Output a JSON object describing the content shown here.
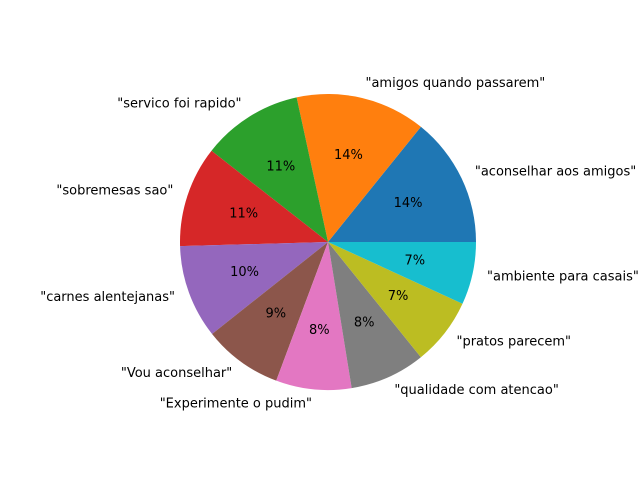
{
  "chart_data": {
    "type": "pie",
    "title": "",
    "start_angle_deg": 0,
    "direction": "counterclockwise",
    "slices": [
      {
        "label": "\"aconselhar aos amigos\"",
        "pct_label": "14%",
        "value": 14.3,
        "color": "#1f77b4"
      },
      {
        "label": "\"amigos quando passarem\"",
        "pct_label": "14%",
        "value": 14.3,
        "color": "#ff7f0e"
      },
      {
        "label": "\"servico foi rapido\"",
        "pct_label": "11%",
        "value": 11.1,
        "color": "#2ca02c"
      },
      {
        "label": "\"sobremesas sao\"",
        "pct_label": "11%",
        "value": 11.1,
        "color": "#d62728"
      },
      {
        "label": "\"carnes alentejanas\"",
        "pct_label": "10%",
        "value": 10.3,
        "color": "#9467bd"
      },
      {
        "label": "\"Vou aconselhar\"",
        "pct_label": "9%",
        "value": 8.7,
        "color": "#8c564b"
      },
      {
        "label": "\"Experimente o pudim\"",
        "pct_label": "8%",
        "value": 8.3,
        "color": "#e377c2"
      },
      {
        "label": "\"qualidade com atencao\"",
        "pct_label": "8%",
        "value": 8.3,
        "color": "#7f7f7f"
      },
      {
        "label": "\"pratos parecem\"",
        "pct_label": "7%",
        "value": 7.4,
        "color": "#bcbd22"
      },
      {
        "label": "\"ambiente para casais\"",
        "pct_label": "7%",
        "value": 6.9,
        "color": "#17becf"
      }
    ]
  }
}
